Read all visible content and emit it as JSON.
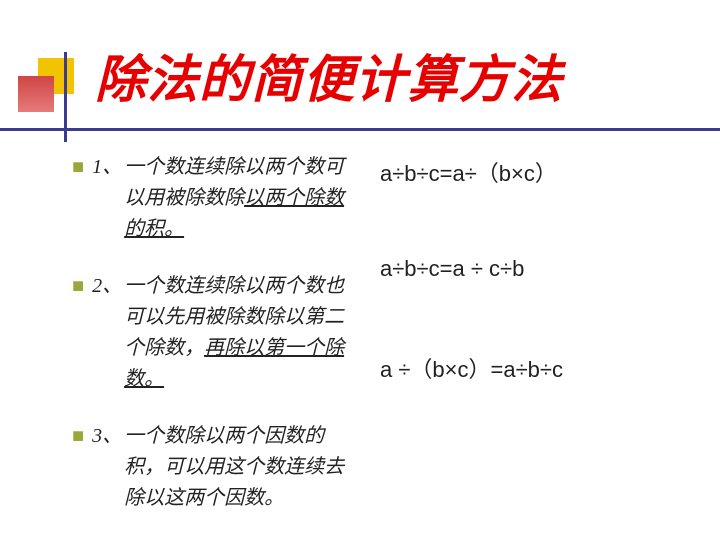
{
  "title": "除法的简便计算方法",
  "rules": [
    {
      "num": "1、",
      "pre": "一个数连续除以两个数可以用被除数除",
      "ul": "以两个除数的积。"
    },
    {
      "num": "2、",
      "pre": "一个数连续除以两个数也可以先用被除数除以第二个除数，",
      "ul": "再除以第一个除数。"
    },
    {
      "num": "3、",
      "pre": "一个数除以两个因数的积，可以用这个数连续去除以这两个因数。",
      "ul": ""
    }
  ],
  "formulas": [
    "a÷b÷c=a÷（b×c）",
    "a÷b÷c=a ÷ c÷b",
    "a ÷（b×c）=a÷b÷c"
  ],
  "colors": {
    "title": "#e60000",
    "accent_yellow": "#f2c300",
    "accent_red": "#d14545",
    "line": "#3b3b8f",
    "bullet": "#9aa83a",
    "text": "#222222",
    "bg": "#ffffff"
  }
}
